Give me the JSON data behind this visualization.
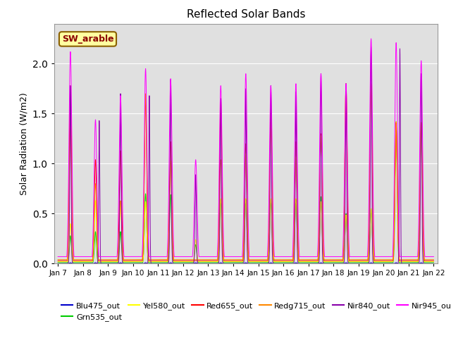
{
  "title": "Reflected Solar Bands",
  "ylabel": "Solar Radiation (W/m2)",
  "annotation": "SW_arable",
  "ylim": [
    0,
    2.4
  ],
  "start_day": 7,
  "end_day": 22,
  "background_color": "#e0e0e0",
  "series_colors": {
    "Blu475_out": "#0000cc",
    "Grn535_out": "#00cc00",
    "Yel580_out": "#ffff00",
    "Red655_out": "#ff0000",
    "Redg715_out": "#ff8800",
    "Nir840_out": "#8800aa",
    "Nir945_out": "#ff00ff"
  },
  "tick_labels": [
    "Jan 7",
    "Jan 8",
    "Jan 9",
    "Jan 10",
    "Jan 11",
    "Jan 12",
    "Jan 13",
    "Jan 14",
    "Jan 15",
    "Jan 16",
    "Jan 17",
    "Jan 18",
    "Jan 19",
    "Jan 20",
    "Jan 21",
    "Jan 22"
  ],
  "tick_positions": [
    7,
    8,
    9,
    10,
    11,
    12,
    13,
    14,
    15,
    16,
    17,
    18,
    19,
    20,
    21,
    22
  ],
  "peak_days": [
    7,
    8,
    9,
    10,
    11,
    12,
    13,
    14,
    15,
    16,
    17,
    18,
    19,
    20,
    21
  ],
  "peak_Nir945_main": [
    2.12,
    1.44,
    1.68,
    1.95,
    1.85,
    1.04,
    1.78,
    1.9,
    1.78,
    1.8,
    1.9,
    1.8,
    2.25,
    2.21,
    2.03
  ],
  "peak_Nir840_main": [
    1.78,
    0.0,
    1.7,
    0.0,
    1.84,
    0.89,
    1.65,
    1.75,
    1.78,
    1.72,
    1.9,
    1.8,
    2.17,
    0.0,
    1.9
  ],
  "peak_Nir840_sub": [
    0.0,
    1.43,
    0.0,
    1.68,
    0.0,
    0.0,
    0.0,
    0.0,
    0.0,
    0.0,
    0.0,
    0.0,
    0.0,
    2.15,
    0.0
  ],
  "peak_Red655": [
    1.78,
    1.04,
    1.13,
    1.65,
    1.22,
    0.0,
    1.65,
    1.2,
    1.55,
    1.22,
    1.3,
    1.8,
    1.8,
    1.41,
    1.41
  ],
  "peak_Redg715": [
    1.35,
    0.8,
    0.63,
    1.7,
    1.03,
    0.0,
    1.04,
    1.1,
    1.35,
    1.07,
    1.28,
    1.8,
    1.8,
    1.41,
    1.41
  ],
  "peak_Yel580": [
    0.4,
    0.63,
    0.62,
    0.62,
    1.02,
    0.24,
    0.65,
    0.65,
    0.65,
    0.65,
    0.62,
    0.49,
    0.55,
    1.42,
    1.41
  ],
  "peak_Grn535": [
    0.28,
    0.32,
    0.32,
    0.7,
    0.69,
    0.19,
    0.64,
    0.64,
    0.64,
    0.64,
    0.67,
    0.5,
    0.55,
    1.42,
    1.41
  ],
  "peak_Blu475": [
    0.01,
    0.01,
    0.01,
    0.01,
    0.01,
    0.01,
    0.01,
    0.01,
    0.01,
    0.01,
    0.01,
    0.01,
    0.01,
    0.01,
    0.01
  ],
  "baseline_Nir945": 0.07,
  "baseline_Red655": 0.03,
  "baseline_Redg715": 0.04,
  "baseline_Yel580": 0.02,
  "baseline_Grn535": 0.01,
  "baseline_Nir840": 0.0,
  "baseline_Blu475": 0.0
}
